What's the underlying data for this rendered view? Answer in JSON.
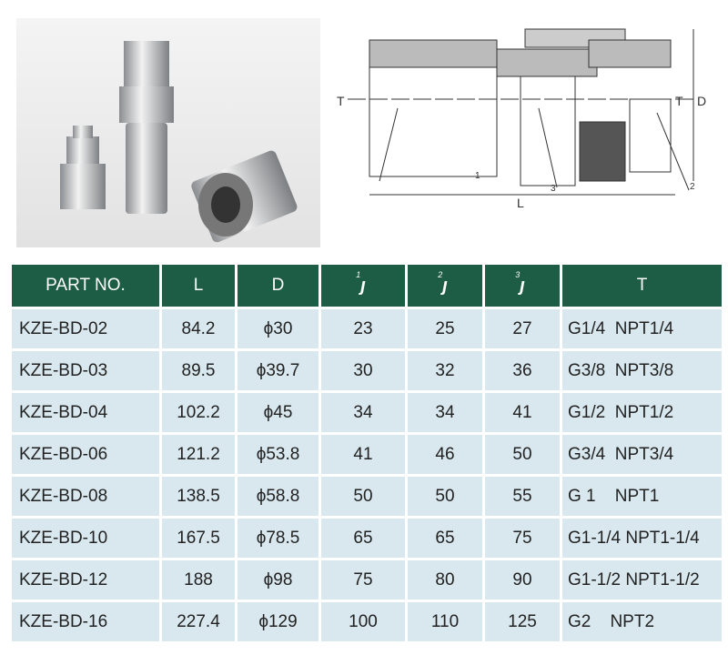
{
  "drawing": {
    "labels": {
      "t_left": "T",
      "t_right": "T",
      "d": "D",
      "l": "L",
      "w1": "1",
      "w2": "2",
      "w3": "3"
    }
  },
  "table": {
    "headers": [
      "PART NO.",
      "L",
      "D",
      "1",
      "2",
      "3",
      "T"
    ],
    "rows": [
      [
        "KZE-BD-02",
        "84.2",
        "ϕ30",
        "23",
        "25",
        "27",
        "G1/4  NPT1/4"
      ],
      [
        "KZE-BD-03",
        "89.5",
        "ϕ39.7",
        "30",
        "32",
        "36",
        "G3/8  NPT3/8"
      ],
      [
        "KZE-BD-04",
        "102.2",
        "ϕ45",
        "34",
        "34",
        "41",
        "G1/2  NPT1/2"
      ],
      [
        "KZE-BD-06",
        "121.2",
        "ϕ53.8",
        "41",
        "46",
        "50",
        "G3/4  NPT3/4"
      ],
      [
        "KZE-BD-08",
        "138.5",
        "ϕ58.8",
        "50",
        "50",
        "55",
        "G 1    NPT1"
      ],
      [
        "KZE-BD-10",
        "167.5",
        "ϕ78.5",
        "65",
        "65",
        "75",
        "G1-1/4 NPT1-1/4"
      ],
      [
        "KZE-BD-12",
        "188",
        "ϕ98",
        "75",
        "80",
        "90",
        "G1-1/2 NPT1-1/2"
      ],
      [
        "KZE-BD-16",
        "227.4",
        "ϕ129",
        "100",
        "110",
        "125",
        "G2    NPT2"
      ]
    ]
  },
  "colors": {
    "header": "#1d5c45",
    "row": "#d9e8ee"
  }
}
